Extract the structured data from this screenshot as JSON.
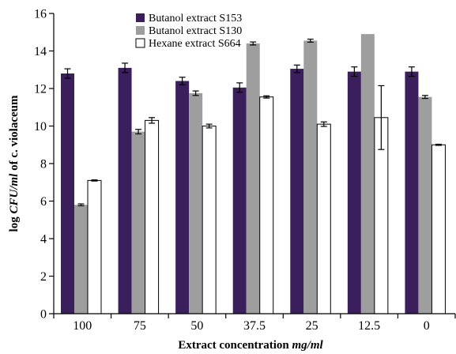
{
  "chart_data": {
    "type": "bar",
    "title": "",
    "xlabel_main": "Extract concentration ",
    "xlabel_unit": "mg/ml",
    "ylabel_pre": "log ",
    "ylabel_unit": "CFU/ml",
    "ylabel_post": " of c. violaceum",
    "categories": [
      "100",
      "75",
      "50",
      "37.5",
      "25",
      "12.5",
      "0"
    ],
    "ylim": [
      0,
      16
    ],
    "yticks": [
      0,
      2,
      4,
      6,
      8,
      10,
      12,
      14,
      16
    ],
    "ytick_labels": [
      "0",
      "2",
      "4",
      "6",
      "8",
      "10",
      "12",
      "14",
      "16"
    ],
    "legend_position": "top-left",
    "grid": false,
    "series": [
      {
        "name": "Butanol extract S153",
        "color": "#3b1f5c",
        "values": [
          12.8,
          13.1,
          12.4,
          12.05,
          13.05,
          12.9,
          12.9
        ],
        "errors": [
          0.25,
          0.25,
          0.2,
          0.25,
          0.2,
          0.25,
          0.25
        ]
      },
      {
        "name": "Butanol extract S130",
        "color": "#9e9e9e",
        "values": [
          5.8,
          9.7,
          11.75,
          14.4,
          14.55,
          14.9,
          11.55
        ],
        "errors": [
          0.05,
          0.12,
          0.12,
          0.08,
          0.08,
          0.0,
          0.08
        ]
      },
      {
        "name": "Hexane extract S664",
        "color": "#ffffff",
        "values": [
          7.1,
          10.3,
          10.0,
          11.55,
          10.1,
          10.45,
          9.0
        ],
        "errors": [
          0.03,
          0.15,
          0.1,
          0.06,
          0.12,
          1.7,
          0.03
        ]
      }
    ]
  }
}
